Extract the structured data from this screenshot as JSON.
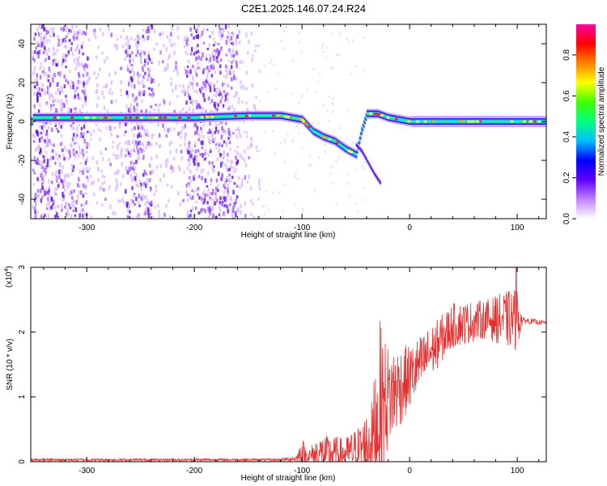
{
  "figure": {
    "title": "C2E1.2025.146.07.24.R24"
  },
  "chart_data": [
    {
      "type": "heatmap",
      "xlabel": "Height of straight line (km)",
      "ylabel": "Frequency (Hz)",
      "xlim": [
        -352,
        127
      ],
      "ylim": [
        -50,
        50
      ],
      "x_ticks": [
        -300,
        -200,
        -100,
        0,
        100
      ],
      "y_ticks": [
        -40,
        -20,
        0,
        20,
        40
      ],
      "x_tick_labels": [
        "-300",
        "-200",
        "-100",
        "0",
        "100"
      ],
      "y_tick_labels": [
        "-40",
        "-20",
        "0",
        "20",
        "40"
      ],
      "colorbar": {
        "label": "Normalized spectral amplitude",
        "range": [
          0,
          0.95
        ],
        "ticks": [
          0.0,
          0.2,
          0.4,
          0.6,
          0.8
        ],
        "tick_labels": [
          "0.0",
          "0.2",
          "0.4",
          "0.6",
          "0.8"
        ],
        "colors": [
          "#ffffff",
          "#c080ff",
          "#6000ff",
          "#0000ff",
          "#00c0ff",
          "#00ff80",
          "#40ff00",
          "#ffff00",
          "#ff8000",
          "#ff0000",
          "#ff00a0"
        ]
      },
      "main_trace": [
        {
          "x": -350,
          "y": 2
        },
        {
          "x": -300,
          "y": 2
        },
        {
          "x": -250,
          "y": 2
        },
        {
          "x": -200,
          "y": 2
        },
        {
          "x": -150,
          "y": 3
        },
        {
          "x": -120,
          "y": 3
        },
        {
          "x": -100,
          "y": 1
        },
        {
          "x": -90,
          "y": -5
        },
        {
          "x": -80,
          "y": -8
        },
        {
          "x": -70,
          "y": -10
        },
        {
          "x": -60,
          "y": -14
        },
        {
          "x": -50,
          "y": -17
        },
        {
          "x": -45,
          "y": -5
        },
        {
          "x": -40,
          "y": 4
        },
        {
          "x": -30,
          "y": 4
        },
        {
          "x": -20,
          "y": 2
        },
        {
          "x": 0,
          "y": 0
        },
        {
          "x": 50,
          "y": 0
        },
        {
          "x": 100,
          "y": 0
        },
        {
          "x": 127,
          "y": 0
        }
      ],
      "side_branch": [
        {
          "x": -50,
          "y": -12
        },
        {
          "x": -45,
          "y": -15
        },
        {
          "x": -40,
          "y": -20
        },
        {
          "x": -33,
          "y": -27
        },
        {
          "x": -27,
          "y": -32
        }
      ],
      "noise_bands_km": [
        [
          -350,
          -300
        ],
        [
          -265,
          -240
        ],
        [
          -210,
          -160
        ]
      ],
      "grid": false
    },
    {
      "type": "line",
      "xlabel": "Height of straight line (km)",
      "ylabel": "SNR (10 * v/v)",
      "y_multiplier_label": "(x10",
      "y_multiplier_exponent": "4",
      "y_multiplier_suffix": ")",
      "xlim": [
        -352,
        127
      ],
      "ylim": [
        0,
        3
      ],
      "x_ticks": [
        -300,
        -200,
        -100,
        0,
        100
      ],
      "y_ticks": [
        0,
        1,
        2,
        3
      ],
      "x_tick_labels": [
        "-300",
        "-200",
        "-100",
        "0",
        "100"
      ],
      "y_tick_labels": [
        "0",
        "1",
        "2",
        "3"
      ],
      "line_color": "#e83030",
      "envelope": [
        {
          "x": -352,
          "mean": 0.03,
          "amp": 0.02
        },
        {
          "x": -120,
          "mean": 0.03,
          "amp": 0.02
        },
        {
          "x": -105,
          "mean": 0.05,
          "amp": 0.05
        },
        {
          "x": -100,
          "mean": 0.15,
          "amp": 0.25
        },
        {
          "x": -95,
          "mean": 0.08,
          "amp": 0.08
        },
        {
          "x": -85,
          "mean": 0.12,
          "amp": 0.3
        },
        {
          "x": -60,
          "mean": 0.12,
          "amp": 0.25
        },
        {
          "x": -45,
          "mean": 0.2,
          "amp": 0.4
        },
        {
          "x": -35,
          "mean": 0.35,
          "amp": 0.6
        },
        {
          "x": -28,
          "mean": 0.8,
          "amp": 1.4
        },
        {
          "x": -20,
          "mean": 1.0,
          "amp": 0.8
        },
        {
          "x": 0,
          "mean": 1.3,
          "amp": 0.5
        },
        {
          "x": 20,
          "mean": 1.7,
          "amp": 0.4
        },
        {
          "x": 40,
          "mean": 2.1,
          "amp": 0.35
        },
        {
          "x": 70,
          "mean": 2.2,
          "amp": 0.3
        },
        {
          "x": 100,
          "mean": 2.2,
          "amp": 0.5
        },
        {
          "x": 105,
          "mean": 2.18,
          "amp": 0.05
        },
        {
          "x": 127,
          "mean": 2.14,
          "amp": 0.03
        }
      ],
      "peak": {
        "x": 99,
        "y": 3.0
      },
      "grid": false
    }
  ]
}
